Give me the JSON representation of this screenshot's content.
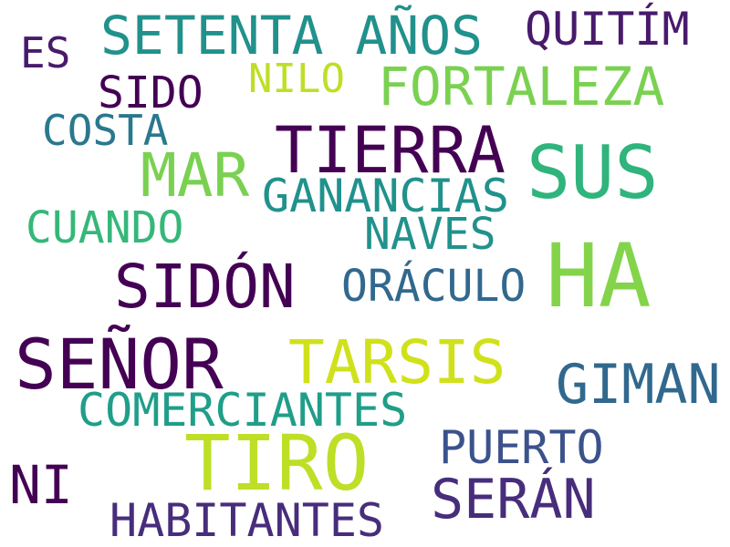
{
  "words": [
    {
      "text": "SETENTA AÑOS",
      "color": "#21918c"
    },
    {
      "text": "QUITÍM",
      "color": "#481a6c"
    },
    {
      "text": "ES",
      "color": "#481a6c"
    },
    {
      "text": "NILO",
      "color": "#bddf26"
    },
    {
      "text": "FORTALEZA",
      "color": "#7ad151"
    },
    {
      "text": "SIDO",
      "color": "#440154"
    },
    {
      "text": "COSTA",
      "color": "#2a788e"
    },
    {
      "text": "TIERRA",
      "color": "#440154"
    },
    {
      "text": "MAR",
      "color": "#7ad151"
    },
    {
      "text": "SUS",
      "color": "#2fb47c"
    },
    {
      "text": "GANANCIAS",
      "color": "#21918c"
    },
    {
      "text": "CUANDO",
      "color": "#35b779"
    },
    {
      "text": "NAVES",
      "color": "#21918c"
    },
    {
      "text": "HA",
      "color": "#84d44b"
    },
    {
      "text": "SIDÓN",
      "color": "#440154"
    },
    {
      "text": "ORÁCULO",
      "color": "#31688e"
    },
    {
      "text": "SEÑOR",
      "color": "#440154"
    },
    {
      "text": "TARSIS",
      "color": "#d0e11c"
    },
    {
      "text": "GIMAN",
      "color": "#31688e"
    },
    {
      "text": "COMERCIANTES",
      "color": "#1f9e89"
    },
    {
      "text": "TIRO",
      "color": "#bddf26"
    },
    {
      "text": "PUERTO",
      "color": "#3b528b"
    },
    {
      "text": "NI",
      "color": "#440154"
    },
    {
      "text": "SERÁN",
      "color": "#472d7b"
    },
    {
      "text": "HABITANTES",
      "color": "#472d7b"
    }
  ]
}
